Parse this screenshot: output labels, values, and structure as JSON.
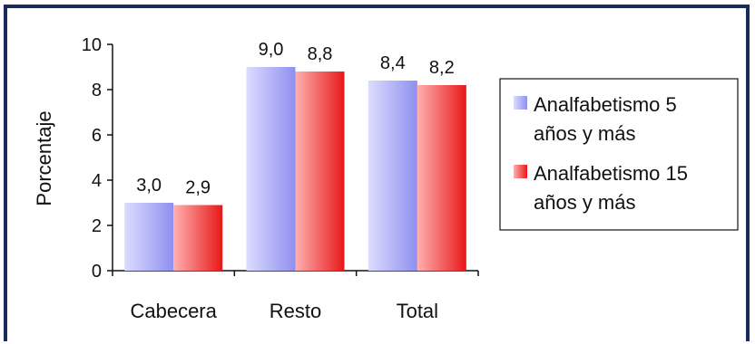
{
  "chart_data": {
    "type": "bar",
    "categories": [
      "Cabecera",
      "Resto",
      "Total"
    ],
    "series": [
      {
        "name": "Analfabetismo 5 años y más",
        "values": [
          3.0,
          9.0,
          8.4
        ],
        "labels": [
          "3,0",
          "9,0",
          "8,4"
        ]
      },
      {
        "name": "Analfabetismo 15 años y más",
        "values": [
          2.9,
          8.8,
          8.2
        ],
        "labels": [
          "2,9",
          "8,8",
          "8,2"
        ]
      }
    ],
    "legend_lines": [
      [
        "Analfabetismo 5",
        "años y más"
      ],
      [
        "Analfabetismo 15",
        "años y más"
      ]
    ],
    "ylabel": "Porcentaje",
    "ylim": [
      0,
      10
    ],
    "yticks": [
      "0",
      "2",
      "4",
      "6",
      "8",
      "10"
    ],
    "grid": false,
    "legend_position": "right"
  },
  "colors": {
    "series1_light": "#dcdcff",
    "series1_dark": "#8f8ff0",
    "series2_light": "#ffb0b0",
    "series2_dark": "#e81818",
    "frame": "#1a2d5a"
  }
}
